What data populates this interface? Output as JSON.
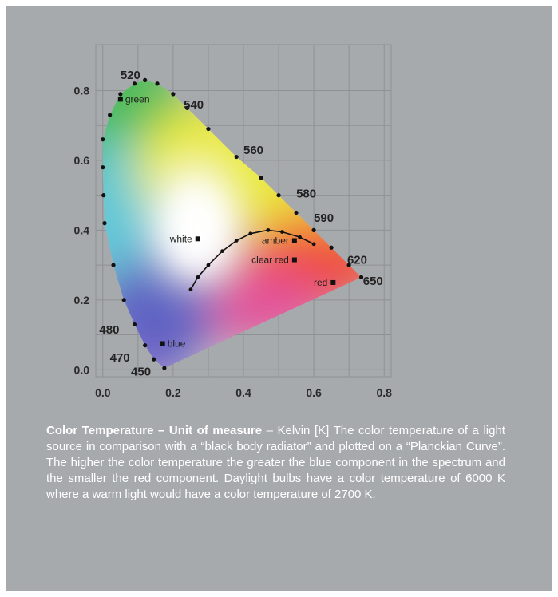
{
  "chart_data": {
    "type": "chromaticity-diagram",
    "x_ticks": [
      "0.0",
      "0.2",
      "0.4",
      "0.6",
      "0.8"
    ],
    "y_ticks": [
      "0.0",
      "0.2",
      "0.4",
      "0.6",
      "0.8"
    ],
    "xlim": [
      0,
      0.8
    ],
    "ylim": [
      0,
      0.85
    ],
    "grid": true,
    "spectral_locus": [
      [
        0.175,
        0.005
      ],
      [
        0.145,
        0.03
      ],
      [
        0.12,
        0.07
      ],
      [
        0.09,
        0.13
      ],
      [
        0.06,
        0.2
      ],
      [
        0.03,
        0.3
      ],
      [
        0.005,
        0.42
      ],
      [
        0.002,
        0.5
      ],
      [
        0.0,
        0.58
      ],
      [
        0.0,
        0.66
      ],
      [
        0.02,
        0.73
      ],
      [
        0.05,
        0.79
      ],
      [
        0.09,
        0.82
      ],
      [
        0.12,
        0.83
      ],
      [
        0.155,
        0.82
      ],
      [
        0.2,
        0.79
      ],
      [
        0.24,
        0.75
      ],
      [
        0.3,
        0.69
      ],
      [
        0.38,
        0.61
      ],
      [
        0.45,
        0.55
      ],
      [
        0.5,
        0.5
      ],
      [
        0.55,
        0.45
      ],
      [
        0.6,
        0.4
      ],
      [
        0.65,
        0.35
      ],
      [
        0.7,
        0.3
      ],
      [
        0.735,
        0.265
      ]
    ],
    "wavelength_labels": [
      {
        "text": "520",
        "x": 0.05,
        "y": 0.845
      },
      {
        "text": "540",
        "x": 0.23,
        "y": 0.76
      },
      {
        "text": "560",
        "x": 0.4,
        "y": 0.63
      },
      {
        "text": "580",
        "x": 0.55,
        "y": 0.505
      },
      {
        "text": "590",
        "x": 0.6,
        "y": 0.435
      },
      {
        "text": "620",
        "x": 0.695,
        "y": 0.315
      },
      {
        "text": "650",
        "x": 0.74,
        "y": 0.255
      },
      {
        "text": "480",
        "x": -0.01,
        "y": 0.115
      },
      {
        "text": "470",
        "x": 0.02,
        "y": 0.035
      },
      {
        "text": "450",
        "x": 0.08,
        "y": -0.005
      }
    ],
    "named_points": [
      {
        "name": "green",
        "x": 0.05,
        "y": 0.775
      },
      {
        "name": "white",
        "x": 0.27,
        "y": 0.375
      },
      {
        "name": "amber",
        "x": 0.545,
        "y": 0.37
      },
      {
        "name": "clear red",
        "x": 0.545,
        "y": 0.315
      },
      {
        "name": "red",
        "x": 0.655,
        "y": 0.25
      },
      {
        "name": "blue",
        "x": 0.17,
        "y": 0.075
      }
    ],
    "planckian_curve": [
      [
        0.25,
        0.23
      ],
      [
        0.27,
        0.265
      ],
      [
        0.3,
        0.3
      ],
      [
        0.34,
        0.34
      ],
      [
        0.38,
        0.37
      ],
      [
        0.42,
        0.39
      ],
      [
        0.47,
        0.4
      ],
      [
        0.51,
        0.395
      ],
      [
        0.56,
        0.38
      ],
      [
        0.6,
        0.36
      ]
    ]
  },
  "caption": {
    "heading": "Color Temperature – Unit of measure",
    "body": " – Kelvin [K] The color temperature of a light source in comparison with a “black body radiator” and plotted on a “Planckian Curve”. The higher the color temperature the greater the blue component in the spectrum and the smaller the red component. Daylight bulbs have a color temperature of 6000 K where a warm light would have a color temperature of 2700 K."
  }
}
